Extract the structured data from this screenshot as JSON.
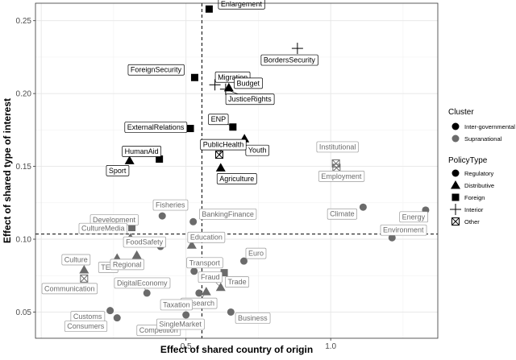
{
  "chart_data": {
    "type": "scatter",
    "xlabel": "Effect of shared country of origin",
    "ylabel": "Effect of shared type of interest",
    "xlim": [
      -0.02,
      1.37
    ],
    "ylim": [
      0.032,
      0.262
    ],
    "xticks": [
      0.5,
      1.0
    ],
    "xtick_labels": [
      "0.5",
      "1.0"
    ],
    "yticks": [
      0.05,
      0.1,
      0.15,
      0.2,
      0.25
    ],
    "ytick_labels": [
      "0.05",
      "0.10",
      "0.15",
      "0.20",
      "0.25"
    ],
    "grid": true,
    "reference_lines": {
      "x": 0.555,
      "y": 0.1035
    },
    "legend": {
      "placement": "right",
      "cluster_title": "Cluster",
      "cluster_entries": [
        {
          "label": "Inter-governmental",
          "color": "#000000"
        },
        {
          "label": "Supranational",
          "color": "#6b6b6b"
        }
      ],
      "type_title": "PolicyType",
      "type_entries": [
        {
          "label": "Regulatory",
          "shape": "circle"
        },
        {
          "label": "Distributive",
          "shape": "triangle"
        },
        {
          "label": "Foreign",
          "shape": "square"
        },
        {
          "label": "Interior",
          "shape": "plus"
        },
        {
          "label": "Other",
          "shape": "boxed-x"
        }
      ]
    },
    "points": [
      {
        "name": "Enlargement",
        "x": 0.58,
        "y": 0.258,
        "cluster": "Inter-governmental",
        "type": "Foreign"
      },
      {
        "name": "BordersSecurity",
        "x": 0.885,
        "y": 0.231,
        "cluster": "Inter-governmental",
        "type": "Interior"
      },
      {
        "name": "ForeignSecurity",
        "x": 0.53,
        "y": 0.211,
        "cluster": "Inter-governmental",
        "type": "Foreign"
      },
      {
        "name": "Migration",
        "x": 0.6,
        "y": 0.206,
        "cluster": "Inter-governmental",
        "type": "Interior"
      },
      {
        "name": "Budget",
        "x": 0.648,
        "y": 0.204,
        "cluster": "Inter-governmental",
        "type": "Distributive"
      },
      {
        "name": "JusticeRights",
        "x": 0.637,
        "y": 0.203,
        "cluster": "Inter-governmental",
        "type": "Interior"
      },
      {
        "name": "ExternalRelations",
        "x": 0.515,
        "y": 0.176,
        "cluster": "Inter-governmental",
        "type": "Foreign"
      },
      {
        "name": "ENP",
        "x": 0.662,
        "y": 0.177,
        "cluster": "Inter-governmental",
        "type": "Foreign"
      },
      {
        "name": "Youth",
        "x": 0.702,
        "y": 0.169,
        "cluster": "Inter-governmental",
        "type": "Distributive"
      },
      {
        "name": "PublicHealth",
        "x": 0.615,
        "y": 0.158,
        "cluster": "Inter-governmental",
        "type": "Other"
      },
      {
        "name": "HumanAid",
        "x": 0.408,
        "y": 0.155,
        "cluster": "Inter-governmental",
        "type": "Foreign"
      },
      {
        "name": "Sport",
        "x": 0.305,
        "y": 0.154,
        "cluster": "Inter-governmental",
        "type": "Distributive"
      },
      {
        "name": "Agriculture",
        "x": 0.62,
        "y": 0.149,
        "cluster": "Inter-governmental",
        "type": "Distributive"
      },
      {
        "name": "Institutional",
        "x": 1.018,
        "y": 0.152,
        "cluster": "Supranational",
        "type": "Other"
      },
      {
        "name": "Employment",
        "x": 1.02,
        "y": 0.149,
        "cluster": "Supranational",
        "type": "Other"
      },
      {
        "name": "Fisheries",
        "x": 0.418,
        "y": 0.116,
        "cluster": "Supranational",
        "type": "Regulatory"
      },
      {
        "name": "BankingFinance",
        "x": 0.525,
        "y": 0.112,
        "cluster": "Supranational",
        "type": "Regulatory"
      },
      {
        "name": "Development",
        "x": 0.313,
        "y": 0.108,
        "cluster": "Supranational",
        "type": "Foreign"
      },
      {
        "name": "Climate",
        "x": 1.112,
        "y": 0.122,
        "cluster": "Supranational",
        "type": "Regulatory"
      },
      {
        "name": "Energy",
        "x": 1.328,
        "y": 0.12,
        "cluster": "Supranational",
        "type": "Regulatory"
      },
      {
        "name": "Environment",
        "x": 1.212,
        "y": 0.101,
        "cluster": "Supranational",
        "type": "Regulatory"
      },
      {
        "name": "CultureMedia",
        "x": 0.308,
        "y": 0.101,
        "cluster": "Supranational",
        "type": "Distributive"
      },
      {
        "name": "FoodSafety",
        "x": 0.412,
        "y": 0.095,
        "cluster": "Supranational",
        "type": "Regulatory"
      },
      {
        "name": "Education",
        "x": 0.52,
        "y": 0.096,
        "cluster": "Supranational",
        "type": "Distributive"
      },
      {
        "name": "Culture",
        "x": 0.148,
        "y": 0.079,
        "cluster": "Supranational",
        "type": "Distributive"
      },
      {
        "name": "TEN",
        "x": 0.262,
        "y": 0.087,
        "cluster": "Supranational",
        "type": "Distributive"
      },
      {
        "name": "Regional",
        "x": 0.33,
        "y": 0.089,
        "cluster": "Supranational",
        "type": "Distributive"
      },
      {
        "name": "Euro",
        "x": 0.7,
        "y": 0.085,
        "cluster": "Supranational",
        "type": "Regulatory"
      },
      {
        "name": "Transport",
        "x": 0.528,
        "y": 0.078,
        "cluster": "Supranational",
        "type": "Regulatory"
      },
      {
        "name": "Trade",
        "x": 0.632,
        "y": 0.077,
        "cluster": "Supranational",
        "type": "Foreign"
      },
      {
        "name": "Communication",
        "x": 0.148,
        "y": 0.073,
        "cluster": "Supranational",
        "type": "Other"
      },
      {
        "name": "DigitalEconomy",
        "x": 0.365,
        "y": 0.063,
        "cluster": "Supranational",
        "type": "Regulatory"
      },
      {
        "name": "Fraud",
        "x": 0.62,
        "y": 0.067,
        "cluster": "Supranational",
        "type": "Distributive"
      },
      {
        "name": "Research",
        "x": 0.57,
        "y": 0.064,
        "cluster": "Supranational",
        "type": "Distributive"
      },
      {
        "name": "Taxation",
        "x": 0.545,
        "y": 0.063,
        "cluster": "Supranational",
        "type": "Regulatory"
      },
      {
        "name": "Customs",
        "x": 0.238,
        "y": 0.051,
        "cluster": "Supranational",
        "type": "Regulatory"
      },
      {
        "name": "Consumers",
        "x": 0.262,
        "y": 0.046,
        "cluster": "Supranational",
        "type": "Regulatory"
      },
      {
        "name": "Competition",
        "x": 0.478,
        "y": 0.041,
        "cluster": "Supranational",
        "type": "Regulatory"
      },
      {
        "name": "SingleMarket",
        "x": 0.5,
        "y": 0.048,
        "cluster": "Supranational",
        "type": "Regulatory"
      },
      {
        "name": "Business",
        "x": 0.655,
        "y": 0.05,
        "cluster": "Supranational",
        "type": "Regulatory"
      }
    ]
  }
}
